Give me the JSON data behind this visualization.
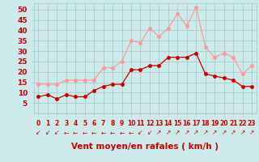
{
  "hours": [
    0,
    1,
    2,
    3,
    4,
    5,
    6,
    7,
    8,
    9,
    10,
    11,
    12,
    13,
    14,
    15,
    16,
    17,
    18,
    19,
    20,
    21,
    22,
    23
  ],
  "wind_avg": [
    8,
    9,
    7,
    9,
    8,
    8,
    11,
    13,
    14,
    14,
    21,
    21,
    23,
    23,
    27,
    27,
    27,
    29,
    19,
    18,
    17,
    16,
    13,
    13
  ],
  "wind_gust": [
    14,
    14,
    14,
    16,
    16,
    16,
    16,
    22,
    22,
    25,
    35,
    34,
    41,
    37,
    41,
    48,
    42,
    51,
    32,
    27,
    29,
    27,
    19,
    23
  ],
  "bg_color": "#cdeaea",
  "grid_color": "#aacccc",
  "line_avg_color": "#cc0000",
  "line_gust_color": "#ff9999",
  "marker_size": 2.5,
  "xlabel": "Vent moyen/en rafales ( km/h )",
  "tick_color": "#cc0000",
  "ylim": [
    0,
    53
  ],
  "yticks": [
    5,
    10,
    15,
    20,
    25,
    30,
    35,
    40,
    45,
    50
  ],
  "xlim": [
    -0.5,
    23.5
  ],
  "arrow_symbols": [
    "↙",
    "↙",
    "↙",
    "←",
    "←",
    "←",
    "←",
    "←",
    "←",
    "←",
    "←",
    "↙",
    "↙",
    "↗",
    "↗",
    "↗",
    "↗",
    "↗",
    "↗",
    "↗",
    "↗",
    "↗",
    "↗",
    "↗"
  ]
}
